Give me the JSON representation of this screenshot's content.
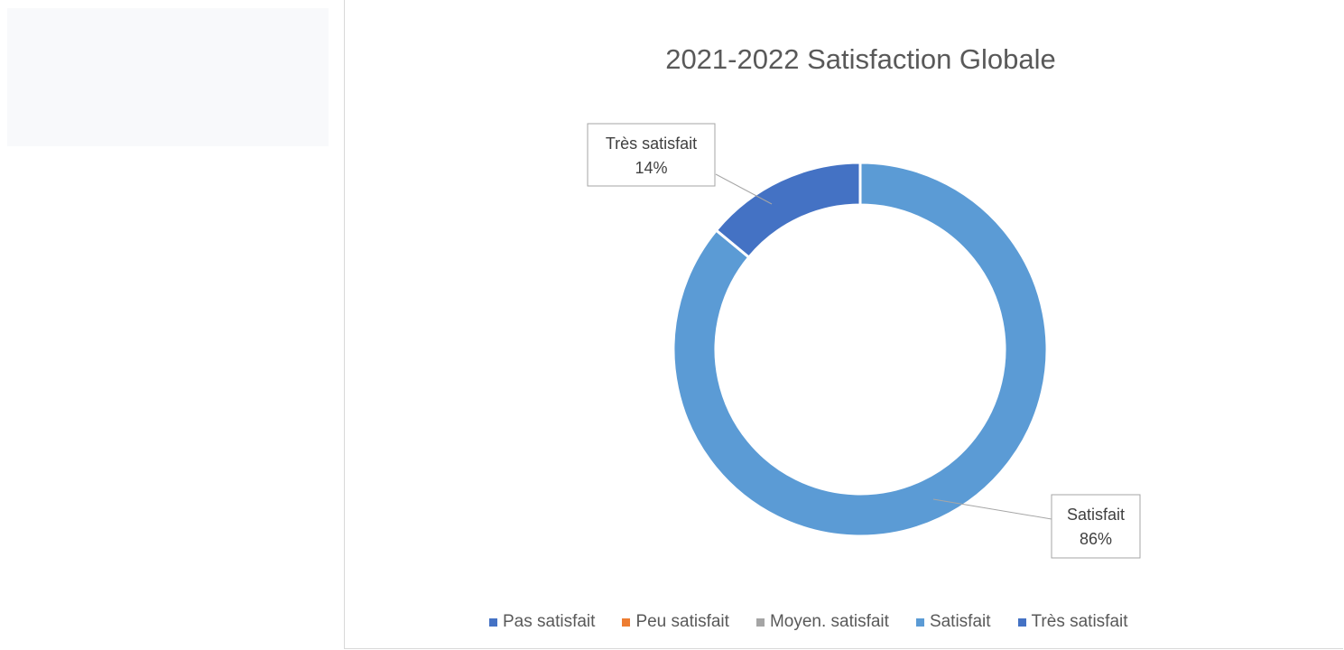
{
  "chart_data": {
    "type": "pie",
    "variant": "doughnut",
    "title": "2021-2022 Satisfaction Globale",
    "categories": [
      "Pas satisfait",
      "Peu satisfait",
      "Moyen. satisfait",
      "Satisfait",
      "Très satisfait"
    ],
    "values": [
      0,
      0,
      0,
      86,
      14
    ],
    "labels": [
      "0%",
      "0%",
      "0%",
      "86%",
      "14%"
    ],
    "colors": [
      "#4472c4",
      "#ed7d31",
      "#a5a5a5",
      "#5b9bd5",
      "#4472c4"
    ],
    "legend_position": "bottom",
    "data_labels": [
      {
        "category": "Très satisfait",
        "text": "14%"
      },
      {
        "category": "Satisfait",
        "text": "86%"
      }
    ]
  }
}
